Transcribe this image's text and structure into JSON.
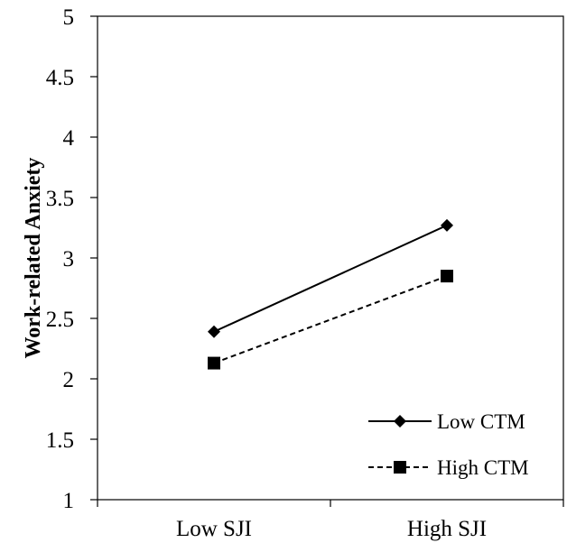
{
  "chart_data": {
    "type": "line",
    "title": "",
    "xlabel": "",
    "ylabel": "Work-related Anxiety",
    "categories": [
      "Low SJI",
      "High SJI"
    ],
    "ylim": [
      1,
      5
    ],
    "yticks": [
      "1",
      "1.5",
      "2",
      "2.5",
      "3",
      "3.5",
      "4",
      "4.5",
      "5"
    ],
    "grid": false,
    "legend": "bottom-right",
    "series": [
      {
        "name": "Low CTM",
        "values": [
          2.39,
          3.27
        ],
        "marker": "diamond",
        "line": "solid",
        "color": "#000000"
      },
      {
        "name": "High CTM",
        "values": [
          2.13,
          2.85
        ],
        "marker": "square",
        "line": "dashed",
        "color": "#000000"
      }
    ]
  }
}
